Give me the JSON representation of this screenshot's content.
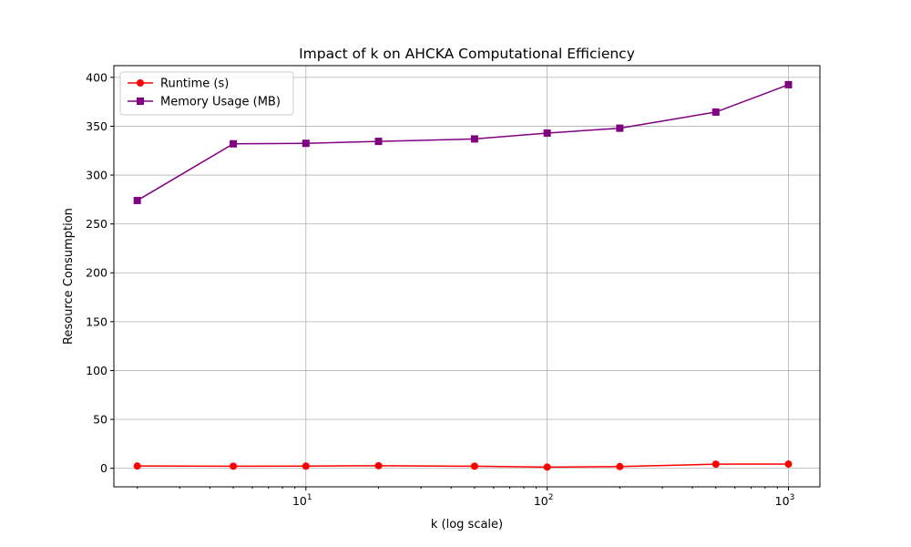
{
  "chart_data": {
    "type": "line",
    "title": "Impact of k on AHCKA Computational Efficiency",
    "xlabel": "k (log scale)",
    "ylabel": "Resource Consumption",
    "xscale": "log",
    "xlim": [
      1.6,
      1350
    ],
    "ylim": [
      -19,
      412
    ],
    "x": [
      2,
      5,
      10,
      20,
      50,
      100,
      200,
      500,
      1000
    ],
    "yticks": [
      0,
      50,
      100,
      150,
      200,
      250,
      300,
      350,
      400
    ],
    "xticks": [
      {
        "value": 10,
        "base": "10",
        "exp": "1"
      },
      {
        "value": 100,
        "base": "10",
        "exp": "2"
      },
      {
        "value": 1000,
        "base": "10",
        "exp": "3"
      }
    ],
    "grid": true,
    "legend_position": "top-left",
    "series": [
      {
        "name": "Runtime (s)",
        "color": "#ff0000",
        "marker": "circle",
        "values": [
          2.3,
          2.1,
          2.2,
          2.6,
          2.1,
          1.2,
          1.7,
          4.2,
          4.3
        ]
      },
      {
        "name": "Memory Usage (MB)",
        "color": "#800080",
        "marker": "square",
        "values": [
          274,
          332,
          332.5,
          334.5,
          337,
          343,
          348,
          364.5,
          392.5
        ]
      }
    ]
  }
}
